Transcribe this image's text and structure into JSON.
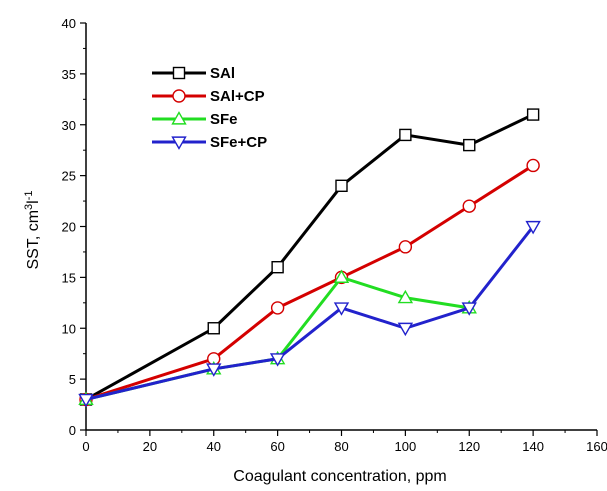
{
  "chart_data": {
    "type": "line",
    "xlabel": "Coagulant concentration, ppm",
    "ylabel": "SST, cm",
    "ylabel_sup1": "3",
    "ylabel_mid": "l",
    "ylabel_sup2": "-1",
    "xlim": [
      0,
      160
    ],
    "ylim": [
      0,
      40
    ],
    "xticks": [
      0,
      20,
      40,
      60,
      80,
      100,
      120,
      140,
      160
    ],
    "yticks": [
      0,
      5,
      10,
      15,
      20,
      25,
      30,
      35,
      40
    ],
    "grid": false,
    "legend_position": "top-left",
    "series": [
      {
        "name": "SAl",
        "color": "#000000",
        "marker": "square",
        "x": [
          0,
          40,
          60,
          80,
          100,
          120,
          140
        ],
        "y": [
          3,
          10,
          16,
          24,
          29,
          28,
          31
        ]
      },
      {
        "name": "SAl+CP",
        "color": "#d40000",
        "marker": "circle",
        "x": [
          0,
          40,
          60,
          80,
          100,
          120,
          140
        ],
        "y": [
          3,
          7,
          12,
          15,
          18,
          22,
          26
        ]
      },
      {
        "name": "SFe",
        "color": "#22dd22",
        "marker": "triangle-up",
        "x": [
          0,
          40,
          60,
          80,
          100,
          120
        ],
        "y": [
          3,
          6,
          7,
          15,
          13,
          12
        ]
      },
      {
        "name": "SFe+CP",
        "color": "#2222cc",
        "marker": "triangle-down",
        "x": [
          0,
          40,
          60,
          80,
          100,
          120,
          140
        ],
        "y": [
          3,
          6,
          7,
          12,
          10,
          12,
          20
        ]
      }
    ]
  }
}
